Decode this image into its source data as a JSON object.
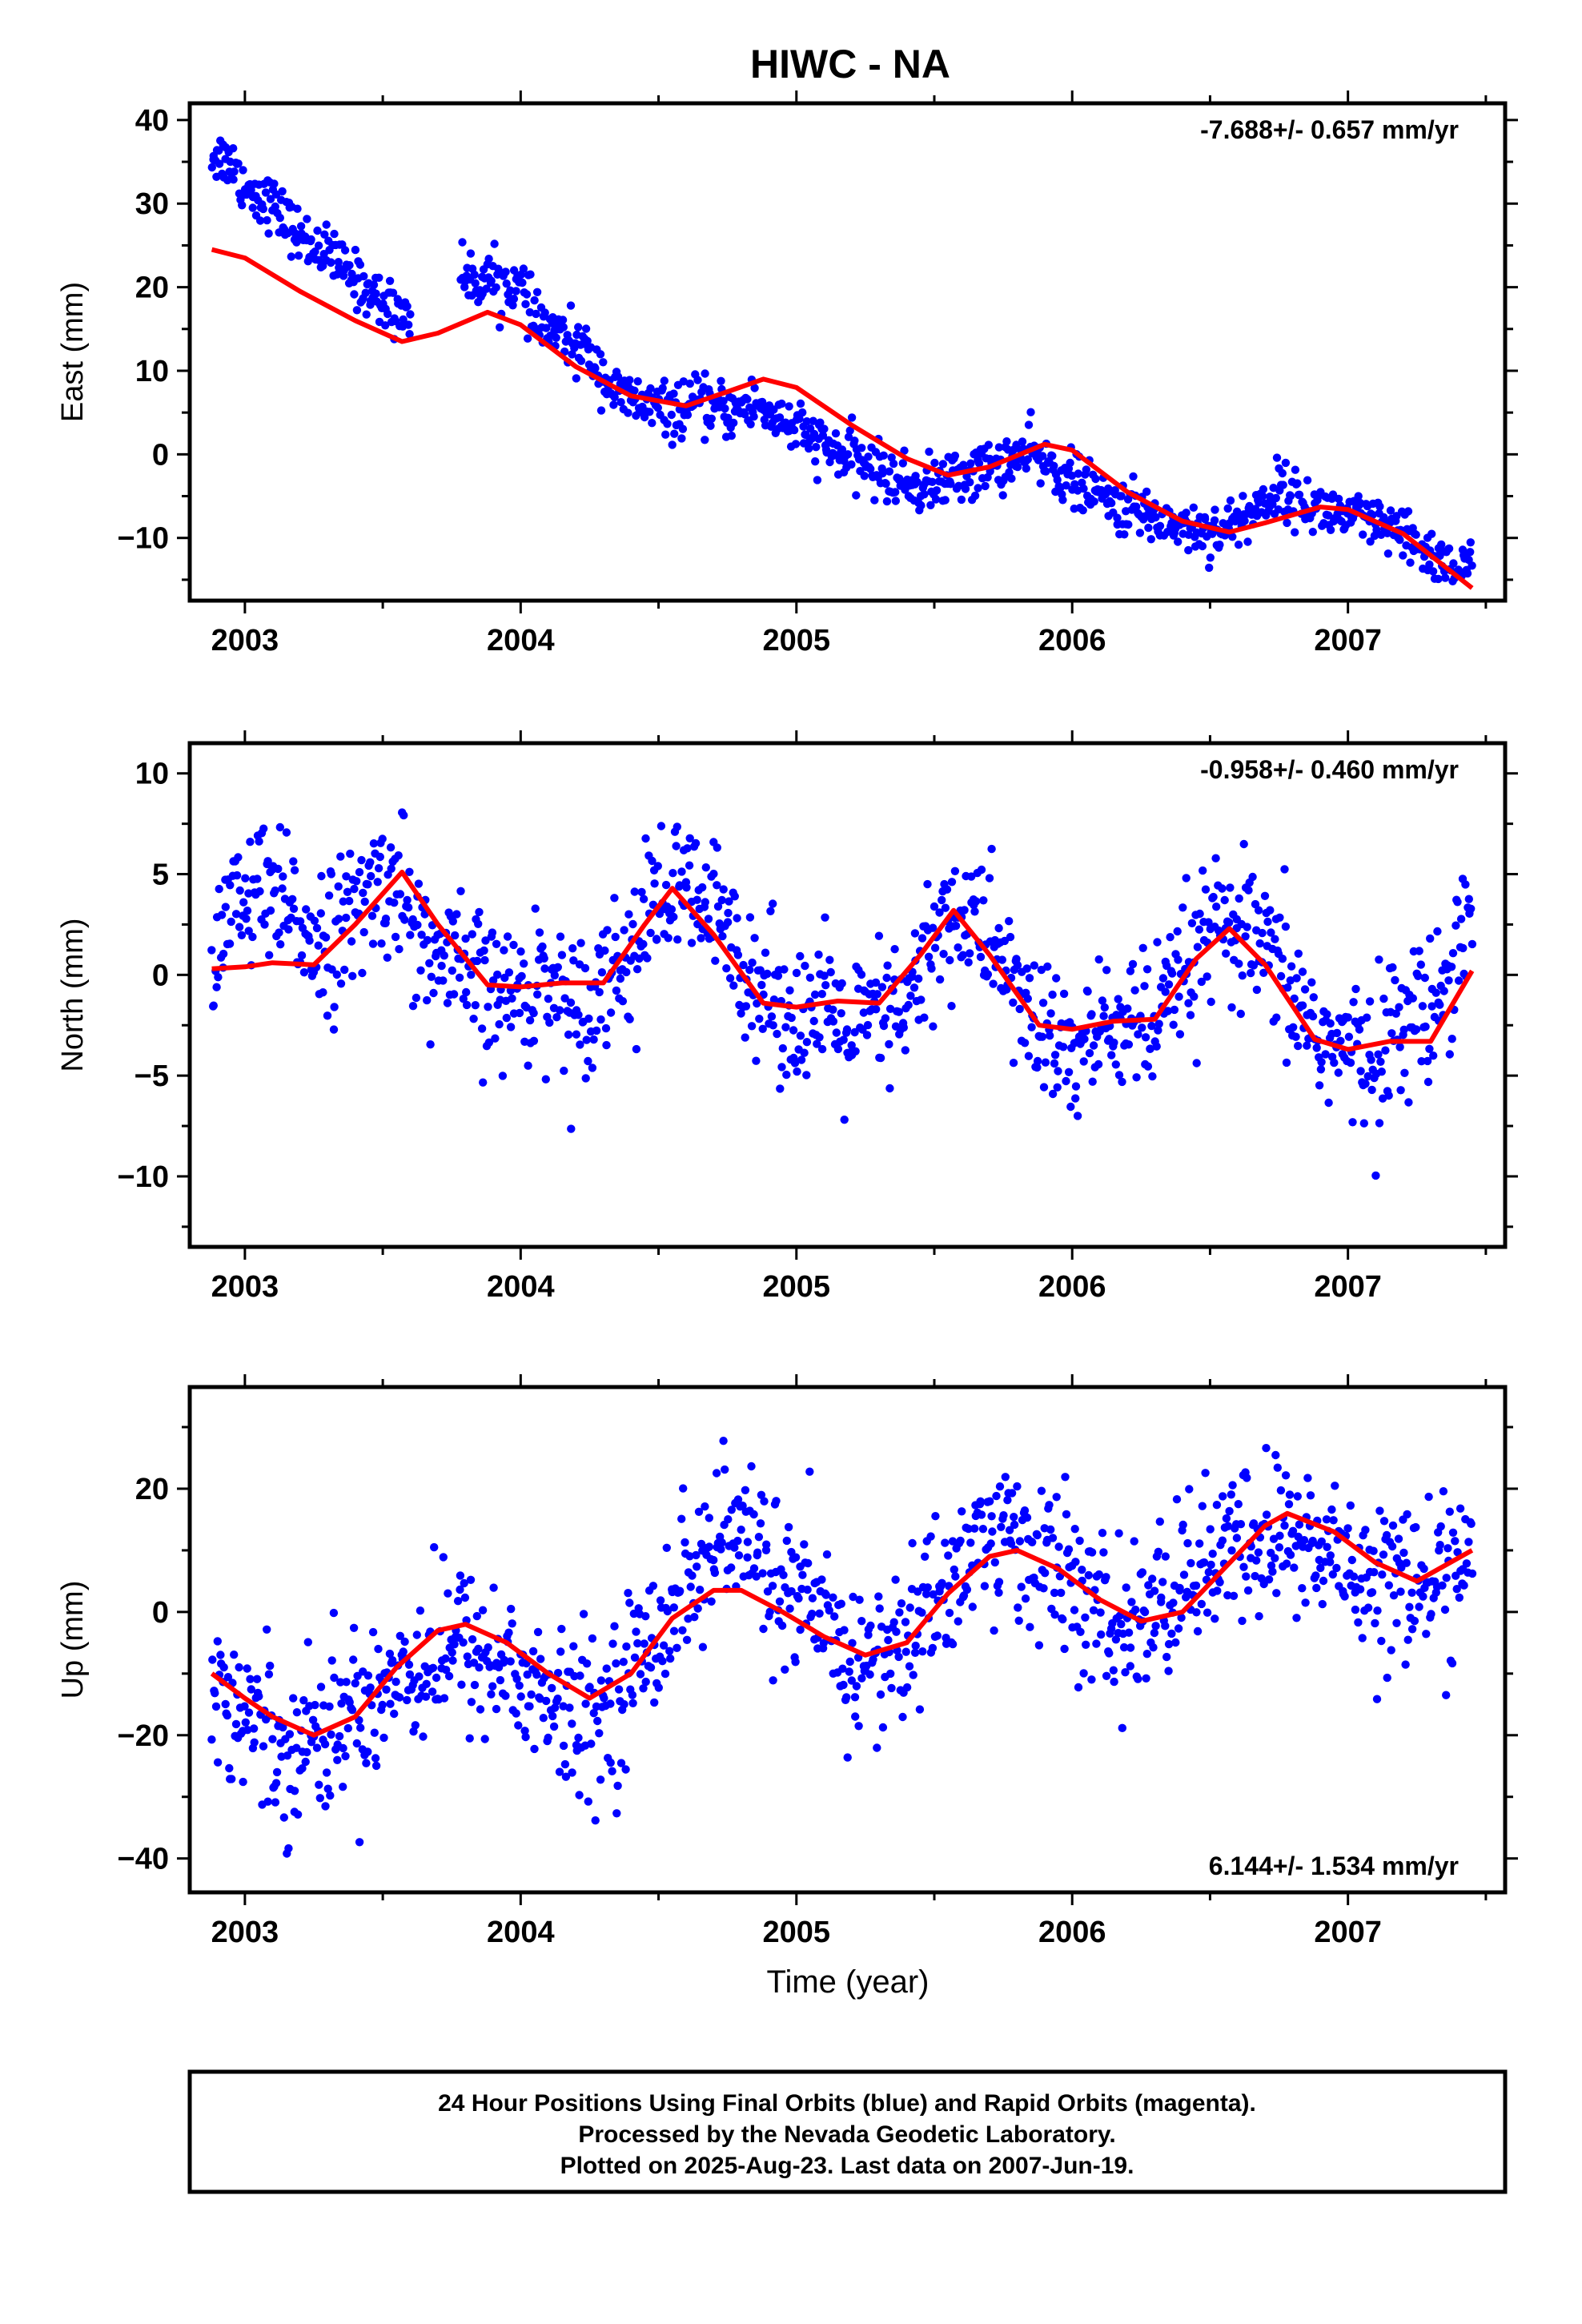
{
  "figure_title": "HIWC - NA",
  "x_axis_label": "Time (year)",
  "footer": {
    "line1": "24 Hour Positions Using Final Orbits (blue) and Rapid Orbits (magenta).",
    "line2": "Processed by the Nevada Geodetic Laboratory.",
    "line3": "Plotted on 2025-Aug-23. Last data on 2007-Jun-19."
  },
  "colors": {
    "points": "#0000ff",
    "fit": "#ff0000",
    "frame": "#000000"
  },
  "chart_data": [
    {
      "type": "scatter",
      "ylabel": "East (mm)",
      "rate_label": "-7.688+/- 0.657 mm/yr",
      "rate_position": "top-right",
      "xlim": [
        2002.8,
        2007.57
      ],
      "ylim": [
        -17.5,
        42
      ],
      "xticks": [
        2003,
        2004,
        2005,
        2006,
        2007
      ],
      "yticks": [
        40,
        30,
        20,
        10,
        0,
        -10
      ],
      "grid": false,
      "series": [
        {
          "role": "daily-positions",
          "color": "#0000ff",
          "x": [
            2002.88,
            2002.95,
            2003.0,
            2003.1,
            2003.2,
            2003.3,
            2003.4,
            2003.5,
            2003.58,
            2003.75,
            2003.8,
            2003.9,
            2004.0,
            2004.05,
            2004.15,
            2004.25,
            2004.35,
            2004.45,
            2004.55,
            2004.65,
            2004.75,
            2004.85,
            2004.95,
            2005.05,
            2005.15,
            2005.25,
            2005.35,
            2005.45,
            2005.55,
            2005.65,
            2005.75,
            2005.85,
            2005.95,
            2006.05,
            2006.15,
            2006.25,
            2006.35,
            2006.45,
            2006.55,
            2006.65,
            2006.75,
            2006.85,
            2006.95,
            2007.05,
            2007.15,
            2007.25,
            2007.35,
            2007.45
          ],
          "y": [
            36,
            35,
            32,
            30,
            26,
            24,
            21,
            18,
            17,
            20,
            21,
            21,
            20,
            16,
            14,
            12,
            7,
            6,
            5,
            6,
            5,
            6,
            4,
            2,
            0,
            -1,
            -3,
            -4,
            -3,
            -2,
            -1,
            0,
            -2,
            -4,
            -6,
            -7,
            -8,
            -9,
            -9,
            -7,
            -4,
            -6,
            -7,
            -8,
            -9,
            -11,
            -13,
            -14
          ]
        },
        {
          "role": "model-fit",
          "color": "#ff0000",
          "x": [
            2002.88,
            2003.0,
            2003.2,
            2003.4,
            2003.57,
            2003.7,
            2003.88,
            2004.0,
            2004.2,
            2004.4,
            2004.6,
            2004.75,
            2004.88,
            2005.0,
            2005.2,
            2005.4,
            2005.55,
            2005.7,
            2005.9,
            2006.0,
            2006.2,
            2006.4,
            2006.57,
            2006.7,
            2006.9,
            2007.0,
            2007.2,
            2007.45
          ],
          "y": [
            24.5,
            23.5,
            19.5,
            16,
            13.5,
            14.5,
            17,
            15.5,
            10.5,
            7,
            5.8,
            7.5,
            9,
            8,
            3.5,
            -0.5,
            -2.5,
            -1.5,
            1.2,
            0.5,
            -4.5,
            -8,
            -9.3,
            -8.2,
            -6.3,
            -6.6,
            -9.5,
            -16
          ]
        }
      ]
    },
    {
      "type": "scatter",
      "ylabel": "North (mm)",
      "rate_label": "-0.958+/- 0.460 mm/yr",
      "rate_position": "top-right",
      "xlim": [
        2002.8,
        2007.57
      ],
      "ylim": [
        -13.5,
        11.5
      ],
      "xticks": [
        2003,
        2004,
        2005,
        2006,
        2007
      ],
      "yticks": [
        10,
        5,
        0,
        -5,
        -10
      ],
      "grid": false,
      "series": [
        {
          "role": "daily-positions",
          "color": "#0000ff",
          "x": [
            2002.88,
            2002.95,
            2003.05,
            2003.15,
            2003.25,
            2003.35,
            2003.45,
            2003.55,
            2003.65,
            2003.8,
            2003.9,
            2004.0,
            2004.1,
            2004.2,
            2004.3,
            2004.4,
            2004.5,
            2004.6,
            2004.7,
            2004.8,
            2004.9,
            2005.0,
            2005.1,
            2005.2,
            2005.3,
            2005.4,
            2005.5,
            2005.6,
            2005.7,
            2005.8,
            2005.9,
            2006.0,
            2006.1,
            2006.2,
            2006.3,
            2006.4,
            2006.5,
            2006.6,
            2006.7,
            2006.8,
            2006.9,
            2007.0,
            2007.1,
            2007.2,
            2007.3,
            2007.4,
            2007.45
          ],
          "y": [
            2,
            3,
            4,
            3,
            2,
            2,
            4,
            5,
            1,
            0,
            -1,
            -1,
            0,
            -2,
            0,
            1,
            4,
            4,
            3,
            1,
            -1,
            -2,
            -2,
            -3,
            -2,
            -2,
            2,
            3,
            2,
            -1,
            -3,
            -4,
            -3,
            -2,
            -3,
            0,
            2,
            2,
            1,
            -1,
            -3,
            -4,
            -4,
            -2,
            -2,
            2,
            3
          ]
        },
        {
          "role": "model-fit",
          "color": "#ff0000",
          "x": [
            2002.88,
            2003.0,
            2003.1,
            2003.25,
            2003.4,
            2003.57,
            2003.7,
            2003.88,
            2004.0,
            2004.15,
            2004.3,
            2004.45,
            2004.55,
            2004.7,
            2004.88,
            2005.0,
            2005.15,
            2005.3,
            2005.45,
            2005.57,
            2005.7,
            2005.88,
            2006.0,
            2006.15,
            2006.3,
            2006.45,
            2006.57,
            2006.7,
            2006.88,
            2007.0,
            2007.15,
            2007.3,
            2007.45
          ],
          "y": [
            0.3,
            0.4,
            0.6,
            0.5,
            2.5,
            5.1,
            2.5,
            -0.5,
            -0.6,
            -0.4,
            -0.4,
            2.5,
            4.3,
            2,
            -1.4,
            -1.6,
            -1.3,
            -1.4,
            1,
            3.2,
            1,
            -2.5,
            -2.7,
            -2.3,
            -2.2,
            0.8,
            2.3,
            0.5,
            -3.2,
            -3.7,
            -3.3,
            -3.3,
            0.2
          ]
        }
      ]
    },
    {
      "type": "scatter",
      "ylabel": "Up (mm)",
      "rate_label": "6.144+/- 1.534 mm/yr",
      "rate_position": "bottom-right",
      "xlim": [
        2002.8,
        2007.57
      ],
      "ylim": [
        -45.5,
        36.5
      ],
      "xticks": [
        2003,
        2004,
        2005,
        2006,
        2007
      ],
      "yticks": [
        20,
        0,
        -20,
        -40
      ],
      "xlabel": "Time (year)",
      "grid": false,
      "series": [
        {
          "role": "daily-positions",
          "color": "#0000ff",
          "x": [
            2002.88,
            2002.95,
            2003.05,
            2003.15,
            2003.25,
            2003.35,
            2003.45,
            2003.55,
            2003.8,
            2003.9,
            2004.0,
            2004.1,
            2004.2,
            2004.3,
            2004.4,
            2004.5,
            2004.6,
            2004.7,
            2004.8,
            2004.9,
            2005.0,
            2005.1,
            2005.2,
            2005.3,
            2005.4,
            2005.5,
            2005.6,
            2005.7,
            2005.8,
            2005.9,
            2006.0,
            2006.1,
            2006.2,
            2006.3,
            2006.4,
            2006.5,
            2006.6,
            2006.7,
            2006.8,
            2006.9,
            2007.0,
            2007.1,
            2007.2,
            2007.3,
            2007.4,
            2007.45
          ],
          "y": [
            -12,
            -15,
            -18,
            -22,
            -20,
            -18,
            -14,
            -10,
            -5,
            -8,
            -10,
            -15,
            -18,
            -16,
            -10,
            -2,
            5,
            10,
            12,
            8,
            2,
            -3,
            -8,
            -8,
            -5,
            2,
            8,
            12,
            12,
            8,
            5,
            -2,
            -3,
            0,
            5,
            8,
            10,
            12,
            12,
            10,
            8,
            6,
            5,
            4,
            8,
            10
          ]
        },
        {
          "role": "model-fit",
          "color": "#ff0000",
          "x": [
            2002.88,
            2003.0,
            2003.1,
            2003.25,
            2003.4,
            2003.55,
            2003.7,
            2003.8,
            2003.95,
            2004.1,
            2004.25,
            2004.4,
            2004.55,
            2004.7,
            2004.8,
            2004.95,
            2005.1,
            2005.25,
            2005.4,
            2005.55,
            2005.7,
            2005.8,
            2005.95,
            2006.1,
            2006.25,
            2006.4,
            2006.55,
            2006.7,
            2006.78,
            2006.95,
            2007.1,
            2007.25,
            2007.45
          ],
          "y": [
            -10,
            -14,
            -17,
            -20,
            -17,
            -9,
            -3,
            -2,
            -5,
            -10,
            -14,
            -10,
            -1,
            3.5,
            3.5,
            0,
            -4,
            -7,
            -5,
            3,
            9,
            10,
            7,
            2,
            -1.5,
            0,
            7,
            14,
            16,
            13,
            8,
            5,
            10
          ]
        }
      ]
    }
  ]
}
